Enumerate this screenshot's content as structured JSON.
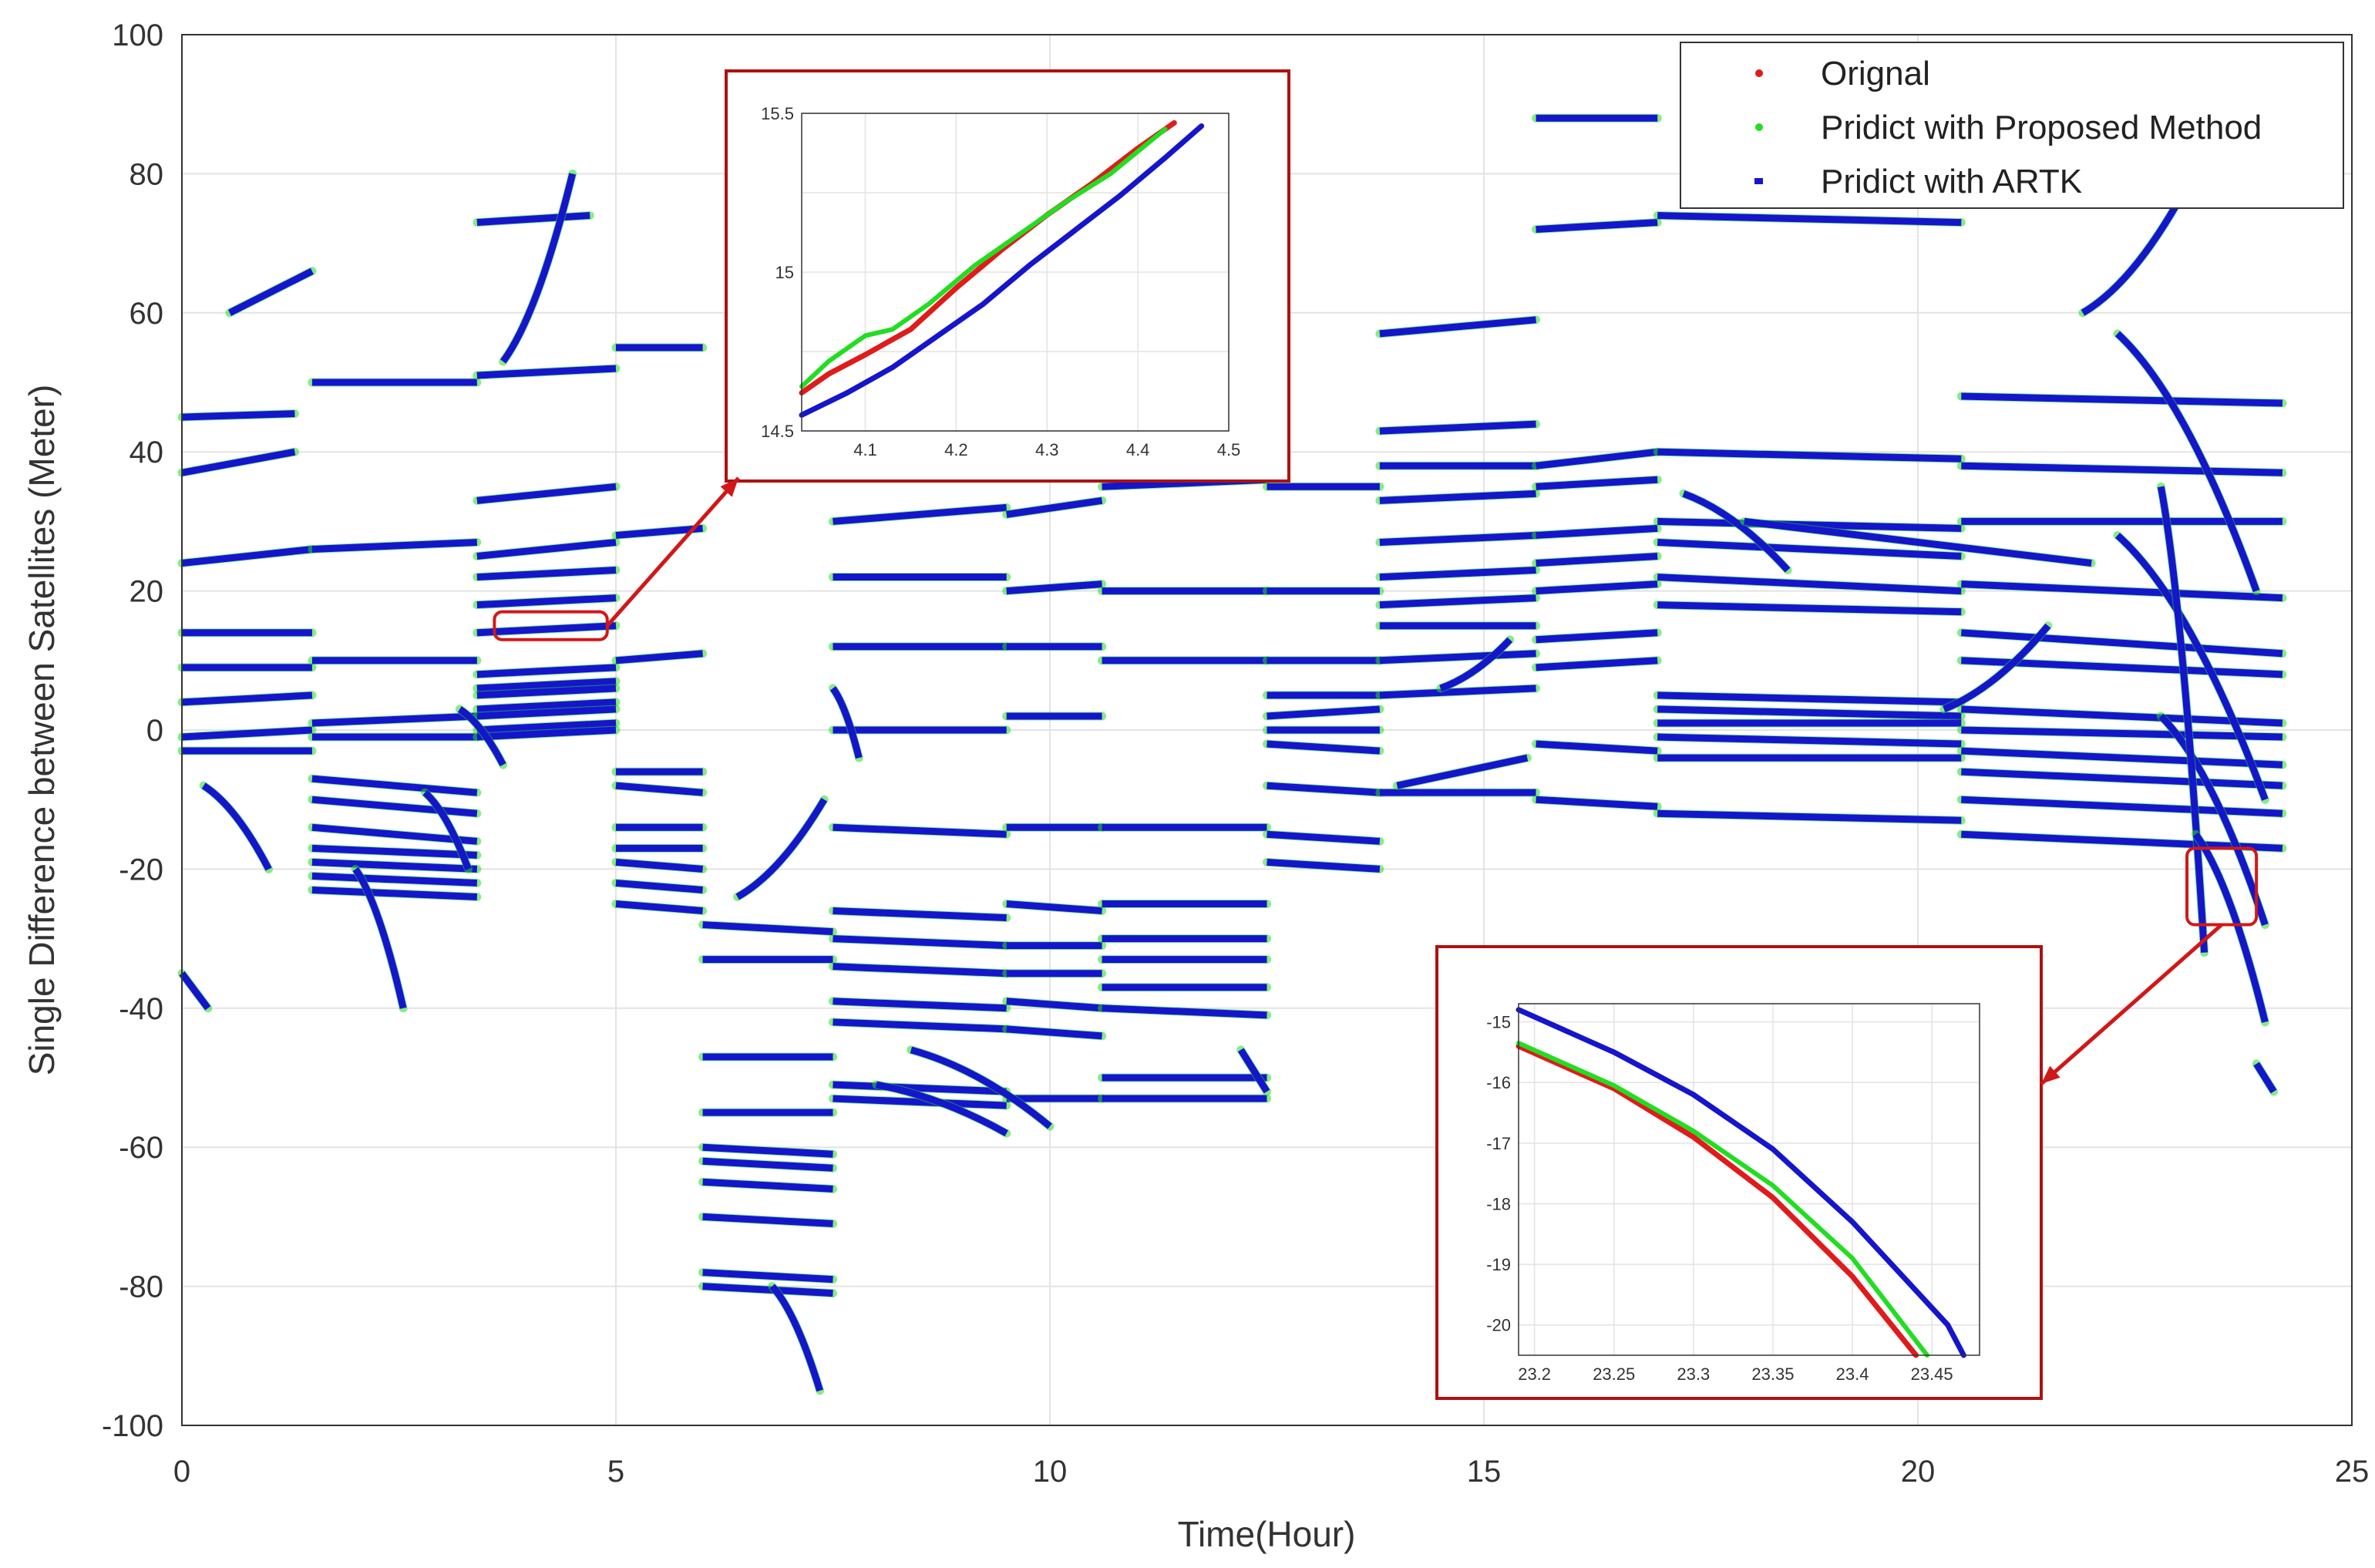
{
  "chart_data": {
    "type": "scatter",
    "title": "",
    "xlabel": "Time(Hour)",
    "ylabel": "Single Difference between Satellites (Meter)",
    "xlim": [
      0,
      25
    ],
    "ylim": [
      -100,
      100
    ],
    "xticks": [
      0,
      5,
      10,
      15,
      20,
      25
    ],
    "yticks": [
      -100,
      -80,
      -60,
      -40,
      -20,
      0,
      20,
      40,
      60,
      80,
      100
    ],
    "grid": true,
    "legend": {
      "position": "top-right",
      "entries": [
        "Orignal",
        "Pridict with Proposed Method",
        "Pridict with ARTK"
      ]
    },
    "colors": {
      "original": "#e01b1b",
      "proposed": "#22dd22",
      "artk": "#1515cc"
    },
    "series": [
      {
        "name": "Orignal",
        "color": "#e01b1b"
      },
      {
        "name": "Pridict with Proposed Method",
        "color": "#22dd22"
      },
      {
        "name": "Pridict with ARTK",
        "color": "#1515cc"
      }
    ],
    "arcs": [
      [
        0.0,
        1.3,
        45,
        45.5
      ],
      [
        0.0,
        1.3,
        37,
        40
      ],
      [
        0.0,
        1.5,
        24,
        26
      ],
      [
        0.0,
        1.5,
        14,
        14
      ],
      [
        0.0,
        1.5,
        9,
        9
      ],
      [
        0.0,
        1.5,
        4,
        5
      ],
      [
        0.0,
        1.5,
        -1,
        0
      ],
      [
        0.0,
        1.5,
        -3,
        -3
      ],
      [
        1.5,
        3.4,
        50,
        50
      ],
      [
        1.5,
        3.4,
        26,
        27
      ],
      [
        1.5,
        3.4,
        10,
        10
      ],
      [
        1.5,
        3.4,
        1,
        2
      ],
      [
        1.5,
        3.4,
        -1,
        -1
      ],
      [
        1.5,
        3.4,
        -7,
        -9
      ],
      [
        1.5,
        3.4,
        -10,
        -12
      ],
      [
        1.5,
        3.4,
        -14,
        -16
      ],
      [
        1.5,
        3.4,
        -17,
        -18
      ],
      [
        1.5,
        3.4,
        -19,
        -20
      ],
      [
        1.5,
        3.4,
        -21,
        -22
      ],
      [
        1.5,
        3.4,
        -23,
        -24
      ],
      [
        3.4,
        5.0,
        51,
        52
      ],
      [
        3.4,
        5.0,
        33,
        35
      ],
      [
        3.4,
        5.0,
        25,
        27
      ],
      [
        3.4,
        5.0,
        22,
        23
      ],
      [
        3.4,
        5.0,
        18,
        19
      ],
      [
        3.4,
        5.0,
        14,
        15
      ],
      [
        3.4,
        5.0,
        8,
        9
      ],
      [
        3.4,
        5.0,
        6,
        7
      ],
      [
        3.4,
        5.0,
        5,
        6
      ],
      [
        3.4,
        5.0,
        3,
        4
      ],
      [
        3.4,
        5.0,
        2,
        3
      ],
      [
        3.4,
        5.0,
        0,
        1
      ],
      [
        3.4,
        5.0,
        -1,
        0
      ],
      [
        3.4,
        4.7,
        73,
        74
      ],
      [
        5.0,
        6.0,
        55,
        55
      ],
      [
        5.0,
        6.0,
        28,
        29
      ],
      [
        5.0,
        6.0,
        10,
        11
      ],
      [
        5.0,
        6.0,
        -6,
        -6
      ],
      [
        5.0,
        6.0,
        -8,
        -9
      ],
      [
        5.0,
        6.0,
        -14,
        -14
      ],
      [
        5.0,
        6.0,
        -17,
        -17
      ],
      [
        5.0,
        6.0,
        -19,
        -20
      ],
      [
        5.0,
        6.0,
        -22,
        -23
      ],
      [
        5.0,
        6.0,
        -25,
        -26
      ],
      [
        6.0,
        7.5,
        -28,
        -29
      ],
      [
        6.0,
        7.5,
        -33,
        -33
      ],
      [
        6.0,
        7.5,
        -47,
        -47
      ],
      [
        6.0,
        7.5,
        -55,
        -55
      ],
      [
        6.0,
        7.5,
        -60,
        -61
      ],
      [
        6.0,
        7.5,
        -62,
        -63
      ],
      [
        6.0,
        7.5,
        -65,
        -66
      ],
      [
        6.0,
        7.5,
        -70,
        -71
      ],
      [
        6.0,
        7.5,
        -78,
        -79
      ],
      [
        6.0,
        7.5,
        -80,
        -81
      ],
      [
        7.5,
        9.5,
        30,
        32
      ],
      [
        7.5,
        9.5,
        22,
        22
      ],
      [
        7.5,
        9.5,
        12,
        12
      ],
      [
        7.5,
        9.5,
        0,
        0
      ],
      [
        7.5,
        9.5,
        -14,
        -15
      ],
      [
        7.5,
        9.5,
        -26,
        -27
      ],
      [
        7.5,
        9.5,
        -30,
        -31
      ],
      [
        7.5,
        9.5,
        -34,
        -35
      ],
      [
        7.5,
        9.5,
        -39,
        -40
      ],
      [
        7.5,
        9.5,
        -42,
        -43
      ],
      [
        7.5,
        9.5,
        -51,
        -52
      ],
      [
        7.5,
        9.5,
        -53,
        -54
      ],
      [
        9.5,
        10.6,
        31,
        33
      ],
      [
        9.5,
        10.6,
        20,
        21
      ],
      [
        9.5,
        10.6,
        12,
        12
      ],
      [
        9.5,
        10.6,
        2,
        2
      ],
      [
        9.5,
        10.6,
        -14,
        -14
      ],
      [
        9.5,
        10.6,
        -25,
        -26
      ],
      [
        9.5,
        10.6,
        -31,
        -31
      ],
      [
        9.5,
        10.6,
        -35,
        -35
      ],
      [
        9.5,
        10.6,
        -39,
        -40
      ],
      [
        9.5,
        10.6,
        -43,
        -44
      ],
      [
        9.5,
        10.6,
        -53,
        -53
      ],
      [
        10.6,
        12.5,
        35,
        36
      ],
      [
        10.6,
        12.5,
        20,
        20
      ],
      [
        10.6,
        12.5,
        10,
        10
      ],
      [
        10.6,
        12.5,
        -14,
        -14
      ],
      [
        10.6,
        12.5,
        -25,
        -25
      ],
      [
        10.6,
        12.5,
        -30,
        -30
      ],
      [
        10.6,
        12.5,
        -33,
        -33
      ],
      [
        10.6,
        12.5,
        -37,
        -37
      ],
      [
        10.6,
        12.5,
        -40,
        -41
      ],
      [
        10.6,
        12.5,
        -50,
        -50
      ],
      [
        10.6,
        12.5,
        -53,
        -53
      ],
      [
        12.5,
        13.8,
        35,
        35
      ],
      [
        12.5,
        13.8,
        20,
        20
      ],
      [
        12.5,
        13.8,
        10,
        10
      ],
      [
        12.5,
        13.8,
        5,
        5
      ],
      [
        12.5,
        13.8,
        2,
        3
      ],
      [
        12.5,
        13.8,
        0,
        0
      ],
      [
        12.5,
        13.8,
        -2,
        -3
      ],
      [
        12.5,
        13.8,
        -8,
        -9
      ],
      [
        12.5,
        13.8,
        -15,
        -16
      ],
      [
        12.5,
        13.8,
        -19,
        -20
      ],
      [
        13.8,
        15.6,
        57,
        59
      ],
      [
        13.8,
        15.6,
        43,
        44
      ],
      [
        13.8,
        15.6,
        38,
        38
      ],
      [
        13.8,
        15.6,
        33,
        34
      ],
      [
        13.8,
        15.6,
        27,
        28
      ],
      [
        13.8,
        15.6,
        22,
        23
      ],
      [
        13.8,
        15.6,
        18,
        19
      ],
      [
        13.8,
        15.6,
        15,
        15
      ],
      [
        13.8,
        15.6,
        10,
        11
      ],
      [
        13.8,
        15.6,
        5,
        6
      ],
      [
        13.8,
        15.6,
        -9,
        -9
      ],
      [
        15.6,
        17.0,
        88,
        88
      ],
      [
        15.6,
        17.0,
        72,
        73
      ],
      [
        15.6,
        17.0,
        38,
        40
      ],
      [
        15.6,
        17.0,
        35,
        36
      ],
      [
        15.6,
        17.0,
        28,
        29
      ],
      [
        15.6,
        17.0,
        24,
        25
      ],
      [
        15.6,
        17.0,
        20,
        21
      ],
      [
        15.6,
        17.0,
        13,
        14
      ],
      [
        15.6,
        17.0,
        9,
        10
      ],
      [
        15.6,
        17.0,
        -2,
        -3
      ],
      [
        15.6,
        17.0,
        -10,
        -11
      ],
      [
        17.0,
        20.5,
        74,
        73
      ],
      [
        17.0,
        20.5,
        40,
        39
      ],
      [
        17.0,
        20.5,
        30,
        29
      ],
      [
        17.0,
        20.5,
        27,
        25
      ],
      [
        17.0,
        20.5,
        22,
        20
      ],
      [
        17.0,
        20.5,
        18,
        17
      ],
      [
        17.0,
        20.5,
        5,
        4
      ],
      [
        17.0,
        20.5,
        3,
        2
      ],
      [
        17.0,
        20.5,
        1,
        1
      ],
      [
        17.0,
        20.5,
        -1,
        -2
      ],
      [
        17.0,
        20.5,
        -4,
        -4
      ],
      [
        17.0,
        20.5,
        -12,
        -13
      ],
      [
        20.5,
        24.2,
        48,
        47
      ],
      [
        20.5,
        24.2,
        38,
        37
      ],
      [
        20.5,
        24.2,
        30,
        30
      ],
      [
        20.5,
        24.2,
        21,
        19
      ],
      [
        20.5,
        24.2,
        14,
        11
      ],
      [
        20.5,
        24.2,
        10,
        8
      ],
      [
        20.5,
        24.2,
        3,
        1
      ],
      [
        20.5,
        24.2,
        0,
        -1
      ],
      [
        20.5,
        24.2,
        -3,
        -5
      ],
      [
        20.5,
        24.2,
        -6,
        -8
      ],
      [
        20.5,
        24.2,
        -10,
        -12
      ],
      [
        20.5,
        24.2,
        -15,
        -17
      ],
      [
        0.25,
        1.0,
        -8,
        -20
      ],
      [
        0.0,
        0.3,
        -35,
        -40
      ],
      [
        0.55,
        1.5,
        60,
        66
      ],
      [
        2.0,
        2.55,
        -20,
        -40
      ],
      [
        2.8,
        3.3,
        -9,
        -20
      ],
      [
        6.4,
        7.4,
        -24,
        -10
      ],
      [
        7.5,
        7.8,
        6,
        -4
      ],
      [
        6.8,
        7.35,
        -80,
        -95
      ],
      [
        3.7,
        4.5,
        53,
        80
      ],
      [
        3.2,
        3.7,
        3,
        -5
      ],
      [
        8.4,
        10.0,
        -46,
        -57
      ],
      [
        8.0,
        9.5,
        -51,
        -58
      ],
      [
        17.3,
        18.5,
        34,
        23
      ],
      [
        14.5,
        15.3,
        6,
        13
      ],
      [
        14.0,
        15.5,
        -8,
        -4
      ],
      [
        22.3,
        24.0,
        28,
        -10
      ],
      [
        22.8,
        24.0,
        2,
        -28
      ],
      [
        22.3,
        23.9,
        57,
        20
      ],
      [
        22.8,
        23.3,
        35,
        -32
      ],
      [
        23.2,
        24.0,
        -15,
        -42
      ],
      [
        20.3,
        21.5,
        3,
        15
      ],
      [
        18.0,
        22.0,
        30,
        24
      ],
      [
        21.9,
        23.0,
        60,
        76
      ],
      [
        23.9,
        24.1,
        -48,
        -52
      ],
      [
        12.2,
        12.5,
        -46,
        -52
      ]
    ],
    "inset_left": {
      "highlight_xlim": [
        3.6,
        4.9
      ],
      "highlight_ylim": [
        13,
        17
      ],
      "xlim": [
        4.03,
        4.5
      ],
      "ylim": [
        14.5,
        15.5
      ],
      "xticks": [
        4.1,
        4.2,
        4.3,
        4.4,
        4.5
      ],
      "xtick_labels": [
        "4.1",
        "4.2",
        "4.3",
        "4.4",
        "4.5"
      ],
      "ytick_labels": [
        {
          "v": 14.5,
          "t": "14.5"
        },
        {
          "v": 15.0,
          "t": "15"
        },
        {
          "v": 15.5,
          "t": "15.5"
        }
      ],
      "grid_y": [
        14.5,
        14.75,
        15.0,
        15.25,
        15.5
      ],
      "original": [
        [
          4.03,
          14.62
        ],
        [
          4.06,
          14.68
        ],
        [
          4.1,
          14.74
        ],
        [
          4.15,
          14.82
        ],
        [
          4.2,
          14.95
        ],
        [
          4.25,
          15.07
        ],
        [
          4.3,
          15.18
        ],
        [
          4.35,
          15.28
        ],
        [
          4.4,
          15.39
        ],
        [
          4.44,
          15.47
        ]
      ],
      "proposed": [
        [
          4.03,
          14.64
        ],
        [
          4.06,
          14.72
        ],
        [
          4.1,
          14.8
        ],
        [
          4.13,
          14.82
        ],
        [
          4.17,
          14.9
        ],
        [
          4.22,
          15.02
        ],
        [
          4.27,
          15.12
        ],
        [
          4.32,
          15.22
        ],
        [
          4.37,
          15.31
        ],
        [
          4.43,
          15.45
        ]
      ],
      "artk": [
        [
          4.03,
          14.55
        ],
        [
          4.08,
          14.62
        ],
        [
          4.13,
          14.7
        ],
        [
          4.18,
          14.8
        ],
        [
          4.23,
          14.9
        ],
        [
          4.28,
          15.02
        ],
        [
          4.33,
          15.13
        ],
        [
          4.38,
          15.24
        ],
        [
          4.43,
          15.36
        ],
        [
          4.47,
          15.46
        ]
      ]
    },
    "inset_right": {
      "highlight_xlim": [
        23.1,
        23.9
      ],
      "highlight_ylim": [
        -28,
        -17
      ],
      "xlim": [
        23.19,
        23.48
      ],
      "ylim": [
        -20.5,
        -14.7
      ],
      "xticks": [
        23.2,
        23.25,
        23.3,
        23.35,
        23.4,
        23.45
      ],
      "xtick_labels": [
        "23.2",
        "23.25",
        "23.3",
        "23.35",
        "23.4",
        "23.45"
      ],
      "yticks": [
        -15,
        -16,
        -17,
        -18,
        -19,
        -20
      ],
      "ytick_labels": [
        "-15",
        "-16",
        "-17",
        "-18",
        "-19",
        "-20"
      ],
      "original": [
        [
          23.19,
          -15.4
        ],
        [
          23.25,
          -16.1
        ],
        [
          23.3,
          -16.9
        ],
        [
          23.35,
          -17.9
        ],
        [
          23.4,
          -19.2
        ],
        [
          23.44,
          -20.5
        ]
      ],
      "proposed": [
        [
          23.19,
          -15.35
        ],
        [
          23.25,
          -16.05
        ],
        [
          23.3,
          -16.8
        ],
        [
          23.35,
          -17.7
        ],
        [
          23.4,
          -18.9
        ],
        [
          23.447,
          -20.5
        ]
      ],
      "artk": [
        [
          23.19,
          -14.8
        ],
        [
          23.25,
          -15.5
        ],
        [
          23.3,
          -16.2
        ],
        [
          23.35,
          -17.1
        ],
        [
          23.4,
          -18.3
        ],
        [
          23.46,
          -20.0
        ],
        [
          23.47,
          -20.5
        ]
      ]
    }
  }
}
